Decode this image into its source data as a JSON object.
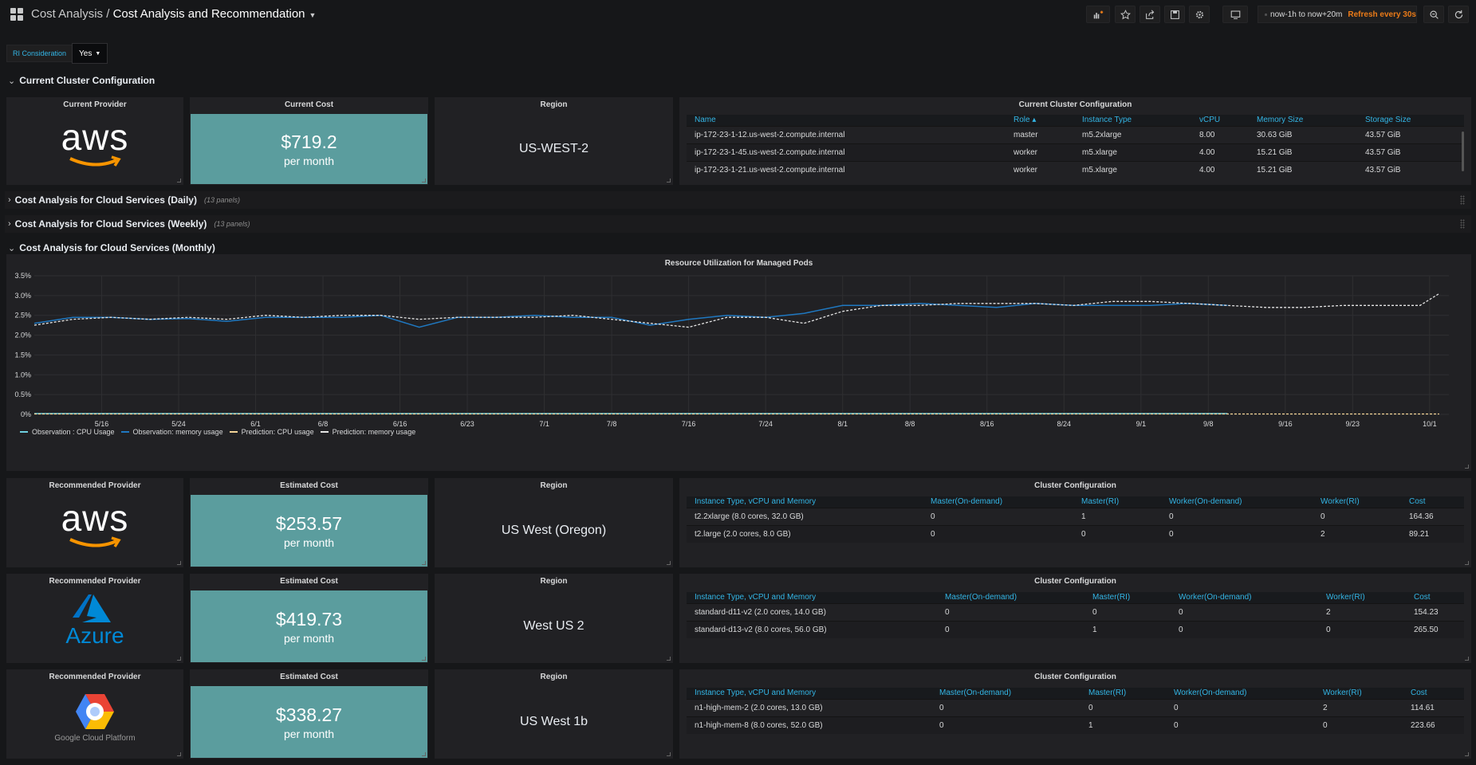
{
  "header": {
    "folder": "Cost Analysis",
    "separator": " / ",
    "dashboard": "Cost Analysis and Recommendation",
    "time_range": "now-1h to now+20m",
    "refresh": "Refresh every 30s",
    "icons": [
      "add-panel-icon",
      "star-icon",
      "share-icon",
      "save-icon",
      "settings-icon",
      "tv-mode-icon",
      "clock-icon",
      "zoom-out-icon",
      "refresh-icon"
    ]
  },
  "variables": {
    "label": "RI Consideration",
    "value": "Yes"
  },
  "rows": {
    "current": "Current Cluster Configuration",
    "daily": "Cost Analysis for Cloud Services (Daily)",
    "daily_count": "(13 panels)",
    "weekly": "Cost Analysis for Cloud Services (Weekly)",
    "weekly_count": "(13 panels)",
    "monthly": "Cost Analysis for Cloud Services (Monthly)"
  },
  "current": {
    "provider_title": "Current Provider",
    "provider_logo": "aws",
    "cost_title": "Current Cost",
    "cost_value": "$719.2",
    "cost_unit": "per month",
    "region_title": "Region",
    "region_value": "US-WEST-2",
    "table_title": "Current Cluster Configuration",
    "columns": [
      "Name",
      "Role ▴",
      "Instance Type",
      "vCPU",
      "Memory Size",
      "Storage Size"
    ],
    "rows": [
      [
        "ip-172-23-1-12.us-west-2.compute.internal",
        "master",
        "m5.2xlarge",
        "8.00",
        "30.63 GiB",
        "43.57 GiB"
      ],
      [
        "ip-172-23-1-45.us-west-2.compute.internal",
        "worker",
        "m5.xlarge",
        "4.00",
        "15.21 GiB",
        "43.57 GiB"
      ],
      [
        "ip-172-23-1-21.us-west-2.compute.internal",
        "worker",
        "m5.xlarge",
        "4.00",
        "15.21 GiB",
        "43.57 GiB"
      ]
    ]
  },
  "recommendations": [
    {
      "provider_title": "Recommended Provider",
      "logo": "aws",
      "cost_title": "Estimated Cost",
      "cost_value": "$253.57",
      "cost_unit": "per month",
      "region_title": "Region",
      "region_value": "US West (Oregon)",
      "table_title": "Cluster Configuration",
      "columns": [
        "Instance Type, vCPU and Memory",
        "Master(On-demand)",
        "Master(RI)",
        "Worker(On-demand)",
        "Worker(RI)",
        "Cost"
      ],
      "rows": [
        [
          "t2.2xlarge (8.0 cores, 32.0 GB)",
          "0",
          "1",
          "0",
          "0",
          "164.36"
        ],
        [
          "t2.large (2.0 cores, 8.0 GB)",
          "0",
          "0",
          "0",
          "2",
          "89.21"
        ]
      ]
    },
    {
      "provider_title": "Recommended Provider",
      "logo": "Azure",
      "cost_title": "Estimated Cost",
      "cost_value": "$419.73",
      "cost_unit": "per month",
      "region_title": "Region",
      "region_value": "West US 2",
      "table_title": "Cluster Configuration",
      "columns": [
        "Instance Type, vCPU and Memory",
        "Master(On-demand)",
        "Master(RI)",
        "Worker(On-demand)",
        "Worker(RI)",
        "Cost"
      ],
      "rows": [
        [
          "standard-d11-v2 (2.0 cores, 14.0 GB)",
          "0",
          "0",
          "0",
          "2",
          "154.23"
        ],
        [
          "standard-d13-v2 (8.0 cores, 56.0 GB)",
          "0",
          "1",
          "0",
          "0",
          "265.50"
        ]
      ]
    },
    {
      "provider_title": "Recommended Provider",
      "logo": "Google Cloud Platform",
      "cost_title": "Estimated Cost",
      "cost_value": "$338.27",
      "cost_unit": "per month",
      "region_title": "Region",
      "region_value": "US West 1b",
      "table_title": "Cluster Configuration",
      "columns": [
        "Instance Type, vCPU and Memory",
        "Master(On-demand)",
        "Master(RI)",
        "Worker(On-demand)",
        "Worker(RI)",
        "Cost"
      ],
      "rows": [
        [
          "n1-high-mem-2 (2.0 cores, 13.0 GB)",
          "0",
          "0",
          "0",
          "2",
          "114.61"
        ],
        [
          "n1-high-mem-8 (8.0 cores, 52.0 GB)",
          "0",
          "1",
          "0",
          "0",
          "223.66"
        ]
      ]
    }
  ],
  "chart_data": {
    "type": "line",
    "title": "Resource Utilization for Managed Pods",
    "x_ticks": [
      "5/16",
      "5/24",
      "6/1",
      "6/8",
      "6/16",
      "6/23",
      "7/1",
      "7/8",
      "7/16",
      "7/24",
      "8/1",
      "8/8",
      "8/16",
      "8/24",
      "9/1",
      "9/8",
      "9/16",
      "9/23",
      "10/1"
    ],
    "y_ticks": [
      "3.5%",
      "3.0%",
      "2.5%",
      "2.0%",
      "1.5%",
      "1.0%",
      "0.5%",
      "0%"
    ],
    "ylim": [
      0,
      3.5
    ],
    "grid": true,
    "legend_position": "bottom-left",
    "series": [
      {
        "name": "Observation : CPU Usage",
        "color": "#7eb26d",
        "style": "solid",
        "x": [
          "5/9",
          "5/13",
          "5/17",
          "5/21",
          "5/25",
          "5/29",
          "6/2",
          "6/6",
          "6/10",
          "6/14",
          "6/18",
          "6/22",
          "6/26",
          "6/30",
          "7/4",
          "7/8",
          "7/12",
          "7/16",
          "7/20",
          "7/24",
          "7/28",
          "8/1",
          "8/5",
          "8/9",
          "8/13",
          "8/17",
          "8/21",
          "8/25",
          "8/29",
          "9/2",
          "9/6",
          "9/10"
        ],
        "y": [
          0.02,
          0.02,
          0.02,
          0.02,
          0.02,
          0.02,
          0.02,
          0.02,
          0.02,
          0.02,
          0.02,
          0.02,
          0.02,
          0.02,
          0.02,
          0.02,
          0.02,
          0.02,
          0.02,
          0.02,
          0.02,
          0.02,
          0.02,
          0.02,
          0.02,
          0.02,
          0.02,
          0.02,
          0.02,
          0.02,
          0.02,
          0.02
        ]
      },
      {
        "name": "Observation: memory usage",
        "color": "#6ed0e0",
        "style": "solid",
        "x": [
          "5/9",
          "5/13",
          "5/17",
          "5/21",
          "5/25",
          "5/29",
          "6/2",
          "6/6",
          "6/10",
          "6/14",
          "6/18",
          "6/22",
          "6/26",
          "6/30",
          "7/4",
          "7/8",
          "7/12",
          "7/16",
          "7/20",
          "7/24",
          "7/28",
          "8/1",
          "8/5",
          "8/9",
          "8/13",
          "8/17",
          "8/21",
          "8/25",
          "8/29",
          "9/2",
          "9/6",
          "9/10"
        ],
        "y": [
          2.3,
          2.45,
          2.45,
          2.4,
          2.42,
          2.35,
          2.45,
          2.45,
          2.45,
          2.5,
          2.2,
          2.45,
          2.45,
          2.5,
          2.45,
          2.45,
          2.25,
          2.4,
          2.5,
          2.45,
          2.55,
          2.75,
          2.75,
          2.8,
          2.75,
          2.7,
          2.8,
          2.75,
          2.75,
          2.75,
          2.8,
          2.75
        ]
      },
      {
        "name": "Prediction: CPU usage",
        "color": "#eab839",
        "style": "dashed",
        "x": [
          "5/9",
          "5/21",
          "6/2",
          "6/14",
          "6/26",
          "7/8",
          "7/20",
          "8/1",
          "8/13",
          "8/25",
          "9/6",
          "9/18",
          "9/30",
          "10/2"
        ],
        "y": [
          0.01,
          0.01,
          0.01,
          0.01,
          0.01,
          0.01,
          0.01,
          0.01,
          0.01,
          0.01,
          0.01,
          0.01,
          0.01,
          0.01
        ]
      },
      {
        "name": "Prediction: memory usage",
        "color": "#e5e5e5",
        "style": "dashed",
        "x": [
          "5/9",
          "5/13",
          "5/17",
          "5/21",
          "5/25",
          "5/29",
          "6/2",
          "6/6",
          "6/10",
          "6/14",
          "6/18",
          "6/22",
          "6/26",
          "6/30",
          "7/4",
          "7/8",
          "7/12",
          "7/16",
          "7/20",
          "7/24",
          "7/28",
          "8/1",
          "8/5",
          "8/9",
          "8/13",
          "8/17",
          "8/21",
          "8/25",
          "8/29",
          "9/2",
          "9/6",
          "9/10",
          "9/14",
          "9/18",
          "9/22",
          "9/26",
          "9/30",
          "10/2"
        ],
        "y": [
          2.25,
          2.4,
          2.45,
          2.4,
          2.45,
          2.4,
          2.5,
          2.45,
          2.5,
          2.5,
          2.4,
          2.45,
          2.45,
          2.45,
          2.5,
          2.4,
          2.3,
          2.2,
          2.45,
          2.45,
          2.3,
          2.6,
          2.75,
          2.75,
          2.8,
          2.8,
          2.8,
          2.75,
          2.85,
          2.85,
          2.8,
          2.75,
          2.7,
          2.7,
          2.75,
          2.75,
          2.75,
          3.05
        ]
      }
    ]
  }
}
